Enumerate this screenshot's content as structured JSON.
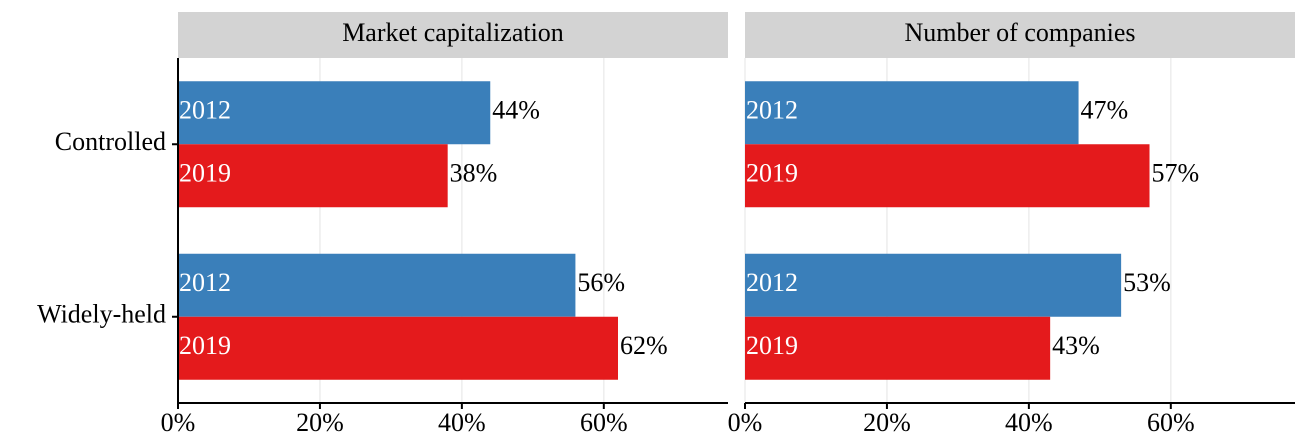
{
  "chart_data": {
    "type": "bar",
    "orientation": "horizontal",
    "categories": [
      "Controlled",
      "Widely-held"
    ],
    "facets": [
      {
        "title": "Market capitalization",
        "series": [
          {
            "name": "2012",
            "color": "#3a7fba",
            "values": [
              44,
              56
            ],
            "value_labels": [
              "44%",
              "56%"
            ]
          },
          {
            "name": "2019",
            "color": "#e41a1c",
            "values": [
              38,
              62
            ],
            "value_labels": [
              "38%",
              "62%"
            ]
          }
        ]
      },
      {
        "title": "Number of companies",
        "series": [
          {
            "name": "2012",
            "color": "#3a7fba",
            "values": [
              47,
              53
            ],
            "value_labels": [
              "47%",
              "53%"
            ]
          },
          {
            "name": "2019",
            "color": "#e41a1c",
            "values": [
              57,
              43
            ],
            "value_labels": [
              "57%",
              "43%"
            ]
          }
        ]
      }
    ],
    "xlim": [
      0,
      77.5
    ],
    "xticks": [
      {
        "value": 0,
        "label": "0%"
      },
      {
        "value": 20,
        "label": "20%"
      },
      {
        "value": 40,
        "label": "40%"
      },
      {
        "value": 60,
        "label": "60%"
      }
    ],
    "grid": true
  }
}
